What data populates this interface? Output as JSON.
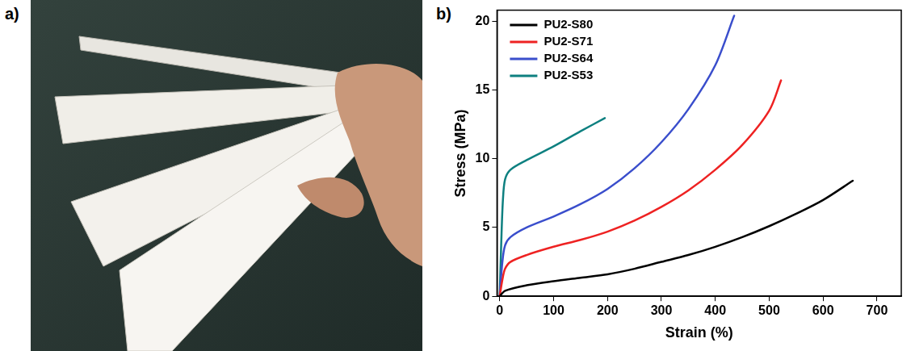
{
  "panel_labels": [
    "a)",
    "b)"
  ],
  "chart_data": {
    "type": "line",
    "x_label": "Strain (%)",
    "y_label": "Stress (MPa)",
    "xlim": [
      -5,
      745
    ],
    "ylim": [
      0,
      20.8
    ],
    "xticks": [
      0,
      100,
      200,
      300,
      400,
      500,
      600,
      700
    ],
    "yticks": [
      0,
      5,
      10,
      15,
      20
    ],
    "grid": false,
    "legend": "top-left",
    "marker": "none",
    "series": [
      {
        "name": "PU2-S80",
        "color": "#000000",
        "x": [
          0,
          10,
          50,
          100,
          150,
          200,
          250,
          300,
          350,
          400,
          450,
          500,
          550,
          600,
          655
        ],
        "values": [
          0,
          0.4,
          0.8,
          1.1,
          1.35,
          1.6,
          2.0,
          2.5,
          3.0,
          3.6,
          4.3,
          5.1,
          6.0,
          7.0,
          8.4
        ]
      },
      {
        "name": "PU2-S71",
        "color": "#ee2222",
        "x": [
          0,
          5,
          10,
          20,
          50,
          100,
          150,
          200,
          250,
          300,
          350,
          400,
          450,
          500,
          522
        ],
        "values": [
          0,
          1.2,
          2.0,
          2.5,
          3.0,
          3.6,
          4.1,
          4.7,
          5.5,
          6.5,
          7.7,
          9.2,
          11.0,
          13.5,
          15.7
        ]
      },
      {
        "name": "PU2-S64",
        "color": "#3a4ecc",
        "x": [
          0,
          5,
          10,
          20,
          50,
          100,
          150,
          200,
          250,
          300,
          350,
          400,
          435
        ],
        "values": [
          0,
          2.5,
          3.7,
          4.3,
          5.0,
          5.8,
          6.7,
          7.8,
          9.3,
          11.2,
          13.6,
          16.8,
          20.4
        ]
      },
      {
        "name": "PU2-S53",
        "color": "#0e8080",
        "x": [
          0,
          3,
          6,
          10,
          20,
          50,
          100,
          150,
          195
        ],
        "values": [
          0,
          4.0,
          7.0,
          8.5,
          9.2,
          9.9,
          10.9,
          12.0,
          12.95
        ]
      }
    ]
  }
}
